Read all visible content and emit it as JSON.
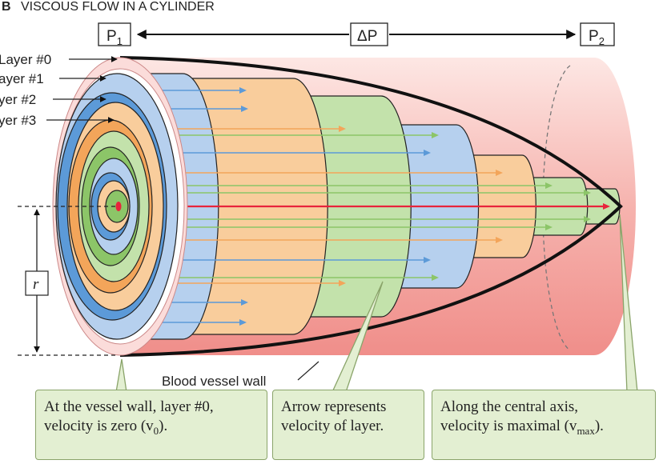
{
  "title": {
    "letter": "B",
    "text": "VISCOUS FLOW IN A CYLINDER"
  },
  "pressure": {
    "p1_main": "P",
    "p1_sub": "1",
    "dp": "ΔP",
    "p2_main": "P",
    "p2_sub": "2"
  },
  "layers": [
    "Layer #0",
    "ayer #1",
    "yer #2",
    "yer #3"
  ],
  "radius_label": "r",
  "vessel_wall_label": "Blood vessel wall",
  "callouts": {
    "wall": {
      "line1": "At the vessel wall, layer #0,",
      "line2_pre": "velocity is zero (v",
      "line2_sub": "0",
      "line2_post": ")."
    },
    "arrow": {
      "line1": "Arrow represents",
      "line2": "velocity of layer."
    },
    "axis": {
      "line1": "Along the central axis,",
      "line2_pre": "velocity is maximal (v",
      "line2_sub": "max",
      "line2_post": ")."
    }
  },
  "colors": {
    "blue": "#b6d0ee",
    "blue_dark": "#5c9ad8",
    "orange": "#f9cd9c",
    "orange_dark": "#f3a55a",
    "green": "#c3e2ab",
    "green_dark": "#8cc568",
    "vessel": "#f4a3a0",
    "center_arrow": "#e8243c"
  }
}
